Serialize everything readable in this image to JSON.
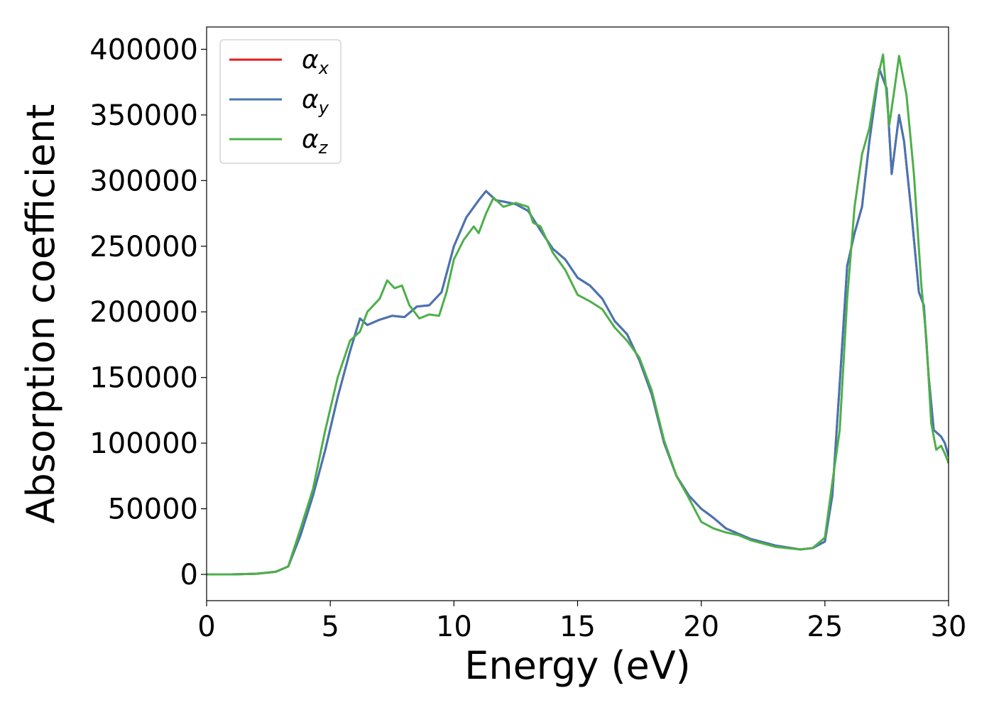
{
  "chart_data": {
    "type": "line",
    "title": "",
    "xlabel": "Energy (eV)",
    "ylabel": "Absorption coefficient",
    "xlim": [
      0,
      30
    ],
    "ylim": [
      -20000,
      417000
    ],
    "xticks": [
      0,
      5,
      10,
      15,
      20,
      25,
      30
    ],
    "yticks": [
      0,
      50000,
      100000,
      150000,
      200000,
      250000,
      300000,
      350000,
      400000
    ],
    "grid": false,
    "legend_position": "top-left",
    "series": [
      {
        "name": "α",
        "sub": "x",
        "color": "#e41a1c",
        "points": [
          [
            0,
            0
          ],
          [
            1,
            0
          ],
          [
            2,
            500
          ],
          [
            2.8,
            2000
          ],
          [
            3.3,
            6000
          ],
          [
            3.8,
            30000
          ],
          [
            4.3,
            60000
          ],
          [
            4.8,
            95000
          ],
          [
            5.3,
            135000
          ],
          [
            5.8,
            170000
          ],
          [
            6.2,
            195000
          ],
          [
            6.5,
            190000
          ],
          [
            7,
            194000
          ],
          [
            7.5,
            197000
          ],
          [
            8,
            196000
          ],
          [
            8.5,
            204000
          ],
          [
            9,
            205000
          ],
          [
            9.5,
            215000
          ],
          [
            10,
            250000
          ],
          [
            10.5,
            272000
          ],
          [
            11,
            285000
          ],
          [
            11.3,
            292000
          ],
          [
            11.7,
            285000
          ],
          [
            12,
            284000
          ],
          [
            12.5,
            282000
          ],
          [
            13,
            277000
          ],
          [
            13.5,
            262000
          ],
          [
            14,
            248000
          ],
          [
            14.5,
            240000
          ],
          [
            15,
            226000
          ],
          [
            15.5,
            220000
          ],
          [
            16,
            210000
          ],
          [
            16.5,
            193000
          ],
          [
            17,
            183000
          ],
          [
            17.5,
            163000
          ],
          [
            18,
            137000
          ],
          [
            18.5,
            100000
          ],
          [
            19,
            75000
          ],
          [
            19.5,
            60000
          ],
          [
            20,
            50000
          ],
          [
            20.5,
            43000
          ],
          [
            21,
            35000
          ],
          [
            21.5,
            31000
          ],
          [
            22,
            27000
          ],
          [
            23,
            22000
          ],
          [
            24,
            19000
          ],
          [
            24.5,
            20000
          ],
          [
            25,
            25000
          ],
          [
            25.3,
            60000
          ],
          [
            25.6,
            145000
          ],
          [
            25.9,
            235000
          ],
          [
            26.2,
            260000
          ],
          [
            26.5,
            280000
          ],
          [
            26.8,
            330000
          ],
          [
            27.2,
            385000
          ],
          [
            27.5,
            370000
          ],
          [
            27.7,
            305000
          ],
          [
            28,
            350000
          ],
          [
            28.2,
            330000
          ],
          [
            28.5,
            275000
          ],
          [
            28.8,
            215000
          ],
          [
            29,
            205000
          ],
          [
            29.2,
            150000
          ],
          [
            29.4,
            110000
          ],
          [
            29.7,
            105000
          ],
          [
            29.85,
            100000
          ],
          [
            30,
            90000
          ]
        ]
      },
      {
        "name": "α",
        "sub": "y",
        "color": "#4575b4",
        "points": [
          [
            0,
            0
          ],
          [
            1,
            0
          ],
          [
            2,
            500
          ],
          [
            2.8,
            2000
          ],
          [
            3.3,
            6000
          ],
          [
            3.8,
            30000
          ],
          [
            4.3,
            60000
          ],
          [
            4.8,
            95000
          ],
          [
            5.3,
            135000
          ],
          [
            5.8,
            170000
          ],
          [
            6.2,
            195000
          ],
          [
            6.5,
            190000
          ],
          [
            7,
            194000
          ],
          [
            7.5,
            197000
          ],
          [
            8,
            196000
          ],
          [
            8.5,
            204000
          ],
          [
            9,
            205000
          ],
          [
            9.5,
            215000
          ],
          [
            10,
            250000
          ],
          [
            10.5,
            272000
          ],
          [
            11,
            285000
          ],
          [
            11.3,
            292000
          ],
          [
            11.7,
            285000
          ],
          [
            12,
            284000
          ],
          [
            12.5,
            282000
          ],
          [
            13,
            277000
          ],
          [
            13.5,
            262000
          ],
          [
            14,
            248000
          ],
          [
            14.5,
            240000
          ],
          [
            15,
            226000
          ],
          [
            15.5,
            220000
          ],
          [
            16,
            210000
          ],
          [
            16.5,
            193000
          ],
          [
            17,
            183000
          ],
          [
            17.5,
            163000
          ],
          [
            18,
            137000
          ],
          [
            18.5,
            100000
          ],
          [
            19,
            75000
          ],
          [
            19.5,
            60000
          ],
          [
            20,
            50000
          ],
          [
            20.5,
            43000
          ],
          [
            21,
            35000
          ],
          [
            21.5,
            31000
          ],
          [
            22,
            27000
          ],
          [
            23,
            22000
          ],
          [
            24,
            19000
          ],
          [
            24.5,
            20000
          ],
          [
            25,
            25000
          ],
          [
            25.3,
            60000
          ],
          [
            25.6,
            145000
          ],
          [
            25.9,
            235000
          ],
          [
            26.2,
            260000
          ],
          [
            26.5,
            280000
          ],
          [
            26.8,
            330000
          ],
          [
            27.2,
            385000
          ],
          [
            27.5,
            370000
          ],
          [
            27.7,
            305000
          ],
          [
            28,
            350000
          ],
          [
            28.2,
            330000
          ],
          [
            28.5,
            275000
          ],
          [
            28.8,
            215000
          ],
          [
            29,
            205000
          ],
          [
            29.2,
            150000
          ],
          [
            29.4,
            110000
          ],
          [
            29.7,
            105000
          ],
          [
            29.85,
            100000
          ],
          [
            30,
            90000
          ]
        ]
      },
      {
        "name": "α",
        "sub": "z",
        "color": "#4daf4a",
        "points": [
          [
            0,
            0
          ],
          [
            1,
            0
          ],
          [
            2,
            500
          ],
          [
            2.8,
            2000
          ],
          [
            3.3,
            6000
          ],
          [
            3.8,
            35000
          ],
          [
            4.3,
            65000
          ],
          [
            4.8,
            110000
          ],
          [
            5.3,
            150000
          ],
          [
            5.8,
            178000
          ],
          [
            6.2,
            185000
          ],
          [
            6.5,
            200000
          ],
          [
            7,
            210000
          ],
          [
            7.3,
            224000
          ],
          [
            7.6,
            218000
          ],
          [
            7.9,
            220000
          ],
          [
            8.2,
            205000
          ],
          [
            8.6,
            195000
          ],
          [
            9,
            198000
          ],
          [
            9.4,
            197000
          ],
          [
            9.7,
            215000
          ],
          [
            10,
            240000
          ],
          [
            10.4,
            255000
          ],
          [
            10.8,
            265000
          ],
          [
            11,
            260000
          ],
          [
            11.3,
            275000
          ],
          [
            11.6,
            287000
          ],
          [
            12,
            280000
          ],
          [
            12.5,
            283000
          ],
          [
            13,
            280000
          ],
          [
            13.2,
            268000
          ],
          [
            13.5,
            265000
          ],
          [
            14,
            245000
          ],
          [
            14.5,
            232000
          ],
          [
            15,
            213000
          ],
          [
            15.5,
            208000
          ],
          [
            16,
            202000
          ],
          [
            16.5,
            188000
          ],
          [
            17,
            178000
          ],
          [
            17.5,
            165000
          ],
          [
            18,
            140000
          ],
          [
            18.5,
            102000
          ],
          [
            19,
            75000
          ],
          [
            19.5,
            58000
          ],
          [
            20,
            40000
          ],
          [
            20.5,
            35000
          ],
          [
            21,
            32000
          ],
          [
            21.5,
            30000
          ],
          [
            22,
            26000
          ],
          [
            23,
            21000
          ],
          [
            24,
            19000
          ],
          [
            24.5,
            20000
          ],
          [
            25,
            28000
          ],
          [
            25.3,
            70000
          ],
          [
            25.6,
            110000
          ],
          [
            25.9,
            210000
          ],
          [
            26.2,
            280000
          ],
          [
            26.5,
            320000
          ],
          [
            26.8,
            340000
          ],
          [
            27.1,
            375000
          ],
          [
            27.35,
            396000
          ],
          [
            27.6,
            342000
          ],
          [
            27.8,
            368000
          ],
          [
            28,
            395000
          ],
          [
            28.3,
            365000
          ],
          [
            28.6,
            305000
          ],
          [
            28.9,
            220000
          ],
          [
            29.1,
            180000
          ],
          [
            29.3,
            115000
          ],
          [
            29.5,
            95000
          ],
          [
            29.7,
            98000
          ],
          [
            29.85,
            92000
          ],
          [
            30,
            85000
          ]
        ]
      }
    ]
  }
}
